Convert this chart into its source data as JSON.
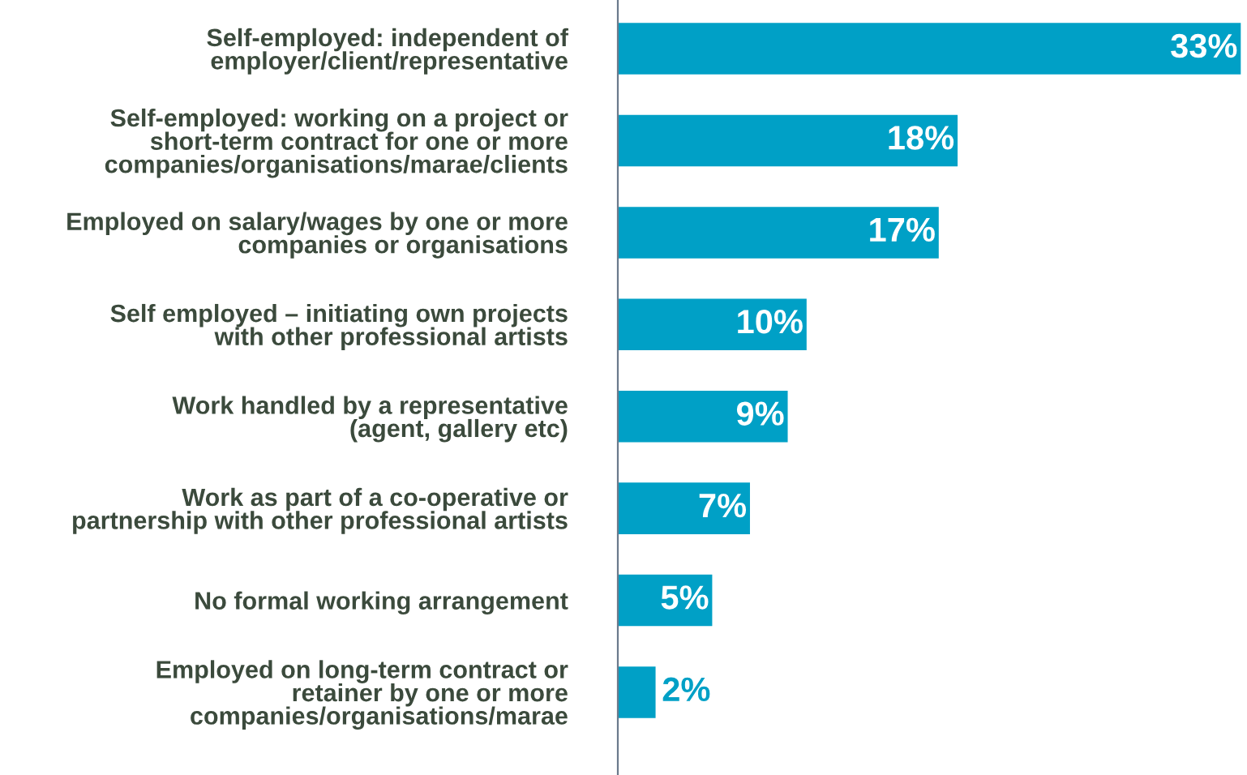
{
  "chart_data": {
    "type": "bar",
    "orientation": "horizontal",
    "categories": [
      "Self-employed: independent of\nemployer/client/representative",
      "Self-employed: working on a project or\nshort-term contract for one or more\ncompanies/organisations/marae/clients",
      "Employed on salary/wages by one or more\ncompanies or organisations",
      "Self employed – initiating own projects\nwith other professional artists",
      "Work handled by a representative\n(agent, gallery etc)",
      "Work as part of a co-operative or\npartnership with other professional artists",
      "No formal working arrangement",
      "Employed on long-term contract or\nretainer by one or more\ncompanies/organisations/marae"
    ],
    "values": [
      33,
      18,
      17,
      10,
      9,
      7,
      5,
      2
    ],
    "value_labels": [
      "33%",
      "18%",
      "17%",
      "10%",
      "9%",
      "7%",
      "5%",
      "2%"
    ],
    "color": "#00a0c6",
    "grid": false,
    "legend": false
  }
}
